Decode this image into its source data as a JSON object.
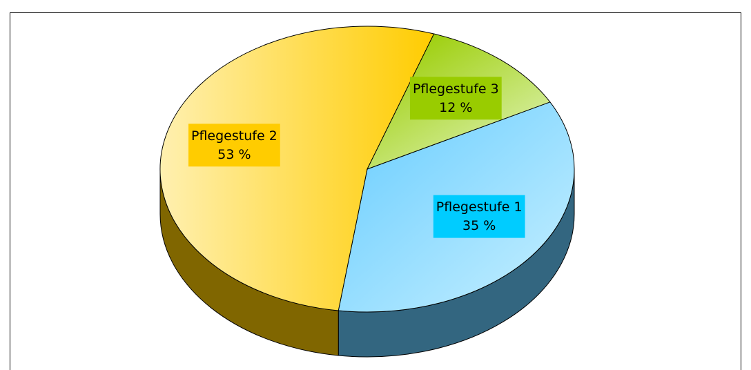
{
  "chart_data": {
    "type": "pie3d",
    "categories": [
      "Pflegestufe 1",
      "Pflegestufe 2",
      "Pflegestufe 3"
    ],
    "values": [
      35,
      53,
      12
    ],
    "value_labels": [
      "35 %",
      "53 %",
      "12 %"
    ],
    "colors": [
      "#66ccff",
      "#ffcc00",
      "#99cc00"
    ],
    "label_backgrounds": [
      "#00ccff",
      "#ffcc00",
      "#99cc00"
    ]
  }
}
